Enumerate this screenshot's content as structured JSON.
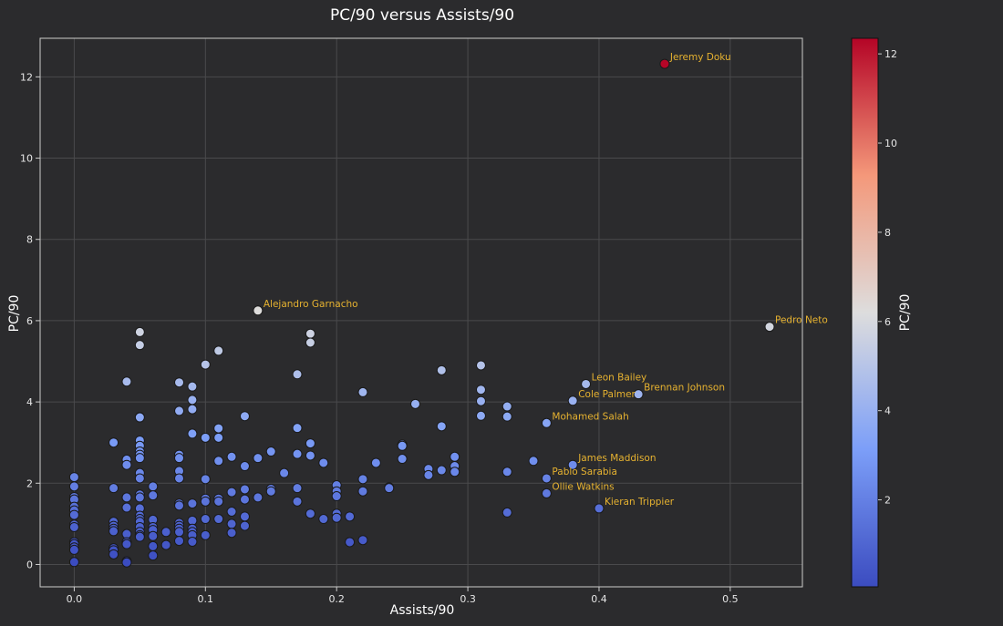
{
  "chart_data": {
    "type": "scatter",
    "title": "PC/90 versus Assists/90",
    "xlabel": "Assists/90",
    "ylabel": "PC/90",
    "xlim": [
      -0.026,
      0.555
    ],
    "ylim": [
      -0.55,
      12.95
    ],
    "xticks": [
      0.0,
      0.1,
      0.2,
      0.3,
      0.4,
      0.5
    ],
    "xtick_labels": [
      "0.0",
      "0.1",
      "0.2",
      "0.3",
      "0.4",
      "0.5"
    ],
    "yticks": [
      0,
      2,
      4,
      6,
      8,
      10,
      12
    ],
    "ytick_labels": [
      "0",
      "2",
      "4",
      "6",
      "8",
      "10",
      "12"
    ],
    "grid": true,
    "colorbar": {
      "label": "PC/90",
      "colormap": "coolwarm",
      "range": [
        0.05,
        12.35
      ],
      "ticks": [
        2,
        4,
        6,
        8,
        10,
        12
      ],
      "tick_labels": [
        "2",
        "4",
        "6",
        "8",
        "10",
        "12"
      ]
    },
    "colors": {
      "background": "#2b2b2d",
      "plot_border": "#cccccc",
      "grid": "#4a4a4c",
      "annotation": "#e6b230",
      "marker_edge": "#1a1a1a"
    },
    "points": [
      [
        0.0,
        2.15
      ],
      [
        0.0,
        1.92
      ],
      [
        0.0,
        1.66
      ],
      [
        0.0,
        1.6
      ],
      [
        0.0,
        1.42
      ],
      [
        0.0,
        1.33
      ],
      [
        0.0,
        1.22
      ],
      [
        0.0,
        0.98
      ],
      [
        0.0,
        0.92
      ],
      [
        0.0,
        0.55
      ],
      [
        0.0,
        0.5
      ],
      [
        0.0,
        0.42
      ],
      [
        0.0,
        0.36
      ],
      [
        0.0,
        0.06
      ],
      [
        0.03,
        3.0
      ],
      [
        0.03,
        1.88
      ],
      [
        0.03,
        1.05
      ],
      [
        0.03,
        0.95
      ],
      [
        0.03,
        0.88
      ],
      [
        0.03,
        0.82
      ],
      [
        0.03,
        0.4
      ],
      [
        0.03,
        0.35
      ],
      [
        0.03,
        0.25
      ],
      [
        0.04,
        4.5
      ],
      [
        0.04,
        2.58
      ],
      [
        0.04,
        2.45
      ],
      [
        0.04,
        1.65
      ],
      [
        0.04,
        1.4
      ],
      [
        0.04,
        0.75
      ],
      [
        0.04,
        0.55
      ],
      [
        0.04,
        0.5
      ],
      [
        0.04,
        0.08
      ],
      [
        0.04,
        0.05
      ],
      [
        0.05,
        5.72
      ],
      [
        0.05,
        5.4
      ],
      [
        0.05,
        3.63
      ],
      [
        0.05,
        3.62
      ],
      [
        0.05,
        3.05
      ],
      [
        0.05,
        2.92
      ],
      [
        0.05,
        2.78
      ],
      [
        0.05,
        2.7
      ],
      [
        0.05,
        2.62
      ],
      [
        0.05,
        2.25
      ],
      [
        0.05,
        2.12
      ],
      [
        0.05,
        1.72
      ],
      [
        0.05,
        1.65
      ],
      [
        0.05,
        1.38
      ],
      [
        0.05,
        1.2
      ],
      [
        0.05,
        1.12
      ],
      [
        0.05,
        1.05
      ],
      [
        0.05,
        0.92
      ],
      [
        0.05,
        0.8
      ],
      [
        0.05,
        0.72
      ],
      [
        0.05,
        0.68
      ],
      [
        0.06,
        1.92
      ],
      [
        0.06,
        1.7
      ],
      [
        0.06,
        1.1
      ],
      [
        0.06,
        0.92
      ],
      [
        0.06,
        0.85
      ],
      [
        0.06,
        0.7
      ],
      [
        0.06,
        0.45
      ],
      [
        0.06,
        0.22
      ],
      [
        0.07,
        0.8
      ],
      [
        0.07,
        0.48
      ],
      [
        0.08,
        4.48
      ],
      [
        0.08,
        3.78
      ],
      [
        0.08,
        2.7
      ],
      [
        0.08,
        2.62
      ],
      [
        0.08,
        2.3
      ],
      [
        0.08,
        2.12
      ],
      [
        0.08,
        1.5
      ],
      [
        0.08,
        1.45
      ],
      [
        0.08,
        1.02
      ],
      [
        0.08,
        0.95
      ],
      [
        0.08,
        0.88
      ],
      [
        0.08,
        0.8
      ],
      [
        0.08,
        0.58
      ],
      [
        0.09,
        4.38
      ],
      [
        0.09,
        4.05
      ],
      [
        0.09,
        3.82
      ],
      [
        0.09,
        3.22
      ],
      [
        0.09,
        1.5
      ],
      [
        0.09,
        1.08
      ],
      [
        0.09,
        0.88
      ],
      [
        0.09,
        0.8
      ],
      [
        0.09,
        0.72
      ],
      [
        0.09,
        0.56
      ],
      [
        0.1,
        4.92
      ],
      [
        0.1,
        3.12
      ],
      [
        0.1,
        2.1
      ],
      [
        0.1,
        1.62
      ],
      [
        0.1,
        1.55
      ],
      [
        0.1,
        1.12
      ],
      [
        0.1,
        0.72
      ],
      [
        0.11,
        5.26
      ],
      [
        0.11,
        3.35
      ],
      [
        0.11,
        3.12
      ],
      [
        0.11,
        2.55
      ],
      [
        0.11,
        1.62
      ],
      [
        0.11,
        1.55
      ],
      [
        0.11,
        1.12
      ],
      [
        0.12,
        2.65
      ],
      [
        0.12,
        1.78
      ],
      [
        0.12,
        1.3
      ],
      [
        0.12,
        1.0
      ],
      [
        0.12,
        0.78
      ],
      [
        0.13,
        3.65
      ],
      [
        0.13,
        2.42
      ],
      [
        0.13,
        1.85
      ],
      [
        0.13,
        1.6
      ],
      [
        0.13,
        1.18
      ],
      [
        0.13,
        0.95
      ],
      [
        0.14,
        6.25
      ],
      [
        0.14,
        2.62
      ],
      [
        0.14,
        1.65
      ],
      [
        0.15,
        2.78
      ],
      [
        0.15,
        1.86
      ],
      [
        0.15,
        1.8
      ],
      [
        0.16,
        2.25
      ],
      [
        0.17,
        4.68
      ],
      [
        0.17,
        3.36
      ],
      [
        0.17,
        2.72
      ],
      [
        0.17,
        1.88
      ],
      [
        0.17,
        1.55
      ],
      [
        0.18,
        5.68
      ],
      [
        0.18,
        5.46
      ],
      [
        0.18,
        2.98
      ],
      [
        0.18,
        2.68
      ],
      [
        0.18,
        1.25
      ],
      [
        0.19,
        2.5
      ],
      [
        0.19,
        1.12
      ],
      [
        0.2,
        1.95
      ],
      [
        0.2,
        1.8
      ],
      [
        0.2,
        1.68
      ],
      [
        0.2,
        1.25
      ],
      [
        0.2,
        1.15
      ],
      [
        0.21,
        1.18
      ],
      [
        0.21,
        0.55
      ],
      [
        0.22,
        4.24
      ],
      [
        0.22,
        2.1
      ],
      [
        0.22,
        1.8
      ],
      [
        0.22,
        0.6
      ],
      [
        0.23,
        2.5
      ],
      [
        0.24,
        1.9
      ],
      [
        0.24,
        1.88
      ],
      [
        0.25,
        2.95
      ],
      [
        0.25,
        2.92
      ],
      [
        0.25,
        2.6
      ],
      [
        0.26,
        3.95
      ],
      [
        0.27,
        2.35
      ],
      [
        0.27,
        2.2
      ],
      [
        0.28,
        4.78
      ],
      [
        0.28,
        3.4
      ],
      [
        0.28,
        2.32
      ],
      [
        0.29,
        2.65
      ],
      [
        0.29,
        2.42
      ],
      [
        0.29,
        2.28
      ],
      [
        0.31,
        4.9
      ],
      [
        0.31,
        4.3
      ],
      [
        0.31,
        4.02
      ],
      [
        0.31,
        3.66
      ],
      [
        0.33,
        3.89
      ],
      [
        0.33,
        3.64
      ],
      [
        0.33,
        2.28
      ],
      [
        0.33,
        1.28
      ],
      [
        0.35,
        2.55
      ],
      [
        0.36,
        3.48
      ],
      [
        0.36,
        2.12
      ],
      [
        0.36,
        1.75
      ],
      [
        0.38,
        4.03
      ],
      [
        0.38,
        2.45
      ],
      [
        0.39,
        4.44
      ],
      [
        0.4,
        1.38
      ],
      [
        0.43,
        4.19
      ],
      [
        0.45,
        12.32
      ],
      [
        0.53,
        5.85
      ]
    ],
    "annotations": [
      {
        "text": "Jeremy Doku",
        "x": 0.45,
        "y": 12.32
      },
      {
        "text": "Alejandro Garnacho",
        "x": 0.14,
        "y": 6.25
      },
      {
        "text": "Pedro Neto",
        "x": 0.53,
        "y": 5.85
      },
      {
        "text": "Leon Bailey",
        "x": 0.39,
        "y": 4.44
      },
      {
        "text": "Cole Palmer",
        "x": 0.38,
        "y": 4.03
      },
      {
        "text": "Brennan Johnson",
        "x": 0.43,
        "y": 4.19
      },
      {
        "text": "Mohamed Salah",
        "x": 0.36,
        "y": 3.48
      },
      {
        "text": "James Maddison",
        "x": 0.38,
        "y": 2.45
      },
      {
        "text": "Pablo Sarabia",
        "x": 0.36,
        "y": 2.12
      },
      {
        "text": "Ollie Watkins",
        "x": 0.36,
        "y": 1.75
      },
      {
        "text": "Kieran Trippier",
        "x": 0.4,
        "y": 1.38
      }
    ]
  }
}
